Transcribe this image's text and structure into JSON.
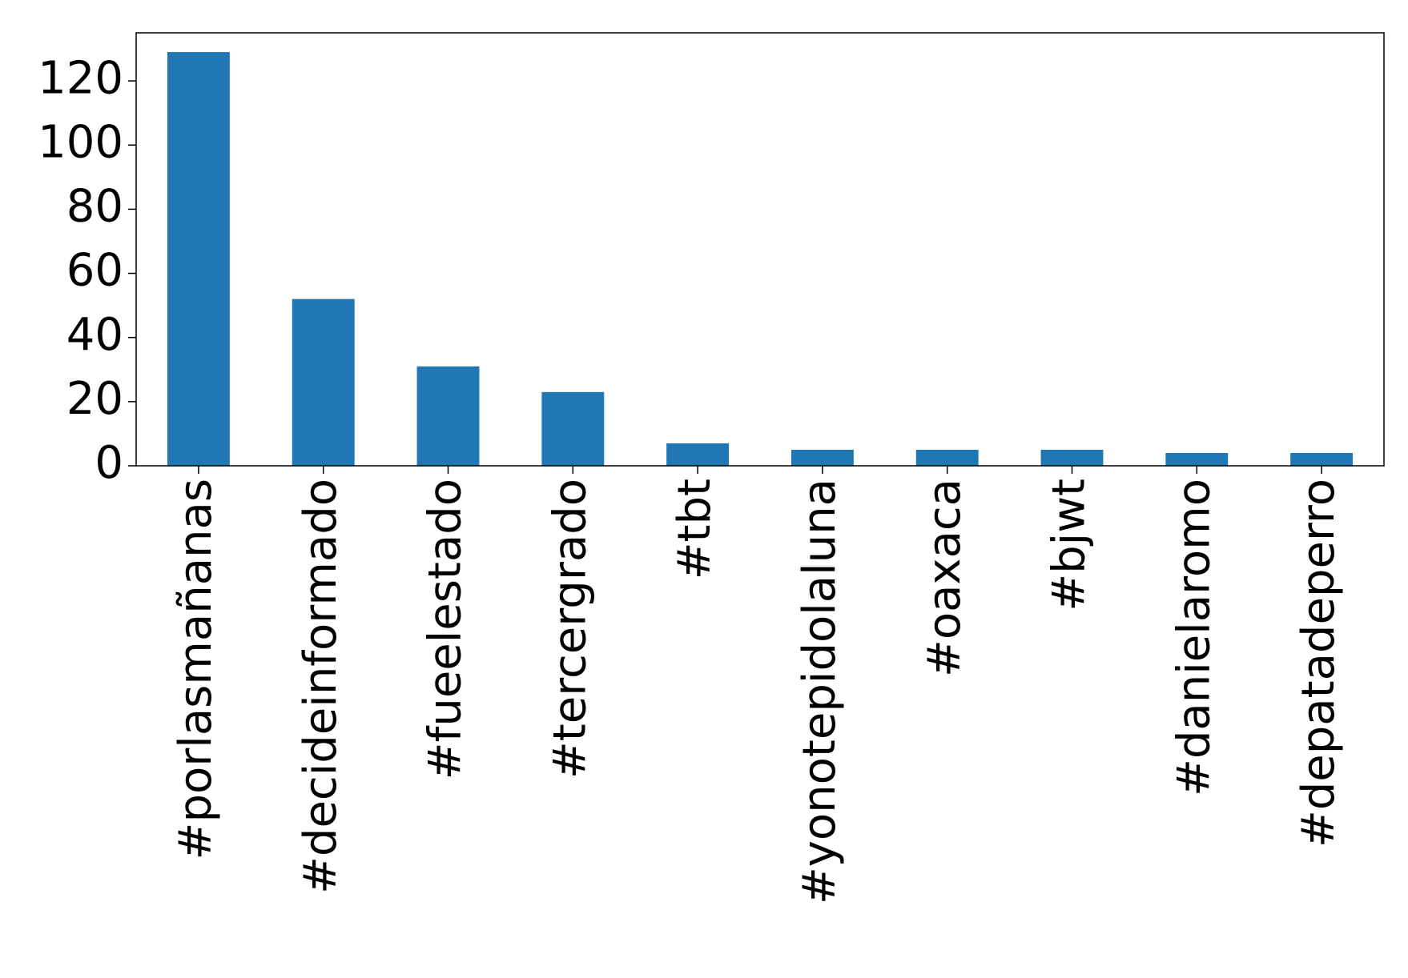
{
  "chart_data": {
    "type": "bar",
    "categories": [
      "#porlasmañanas",
      "#decideinformado",
      "#fueelestado",
      "#tercergrado",
      "#tbt",
      "#yonotepidolaluna",
      "#oaxaca",
      "#bjwt",
      "#danielaromo",
      "#depatadeperro"
    ],
    "values": [
      129,
      52,
      31,
      23,
      7,
      5,
      5,
      5,
      4,
      4
    ],
    "color": "#1f77b4",
    "ylim": [
      0,
      135
    ],
    "yticks": [
      0,
      20,
      40,
      60,
      80,
      100,
      120
    ],
    "grid": false
  }
}
